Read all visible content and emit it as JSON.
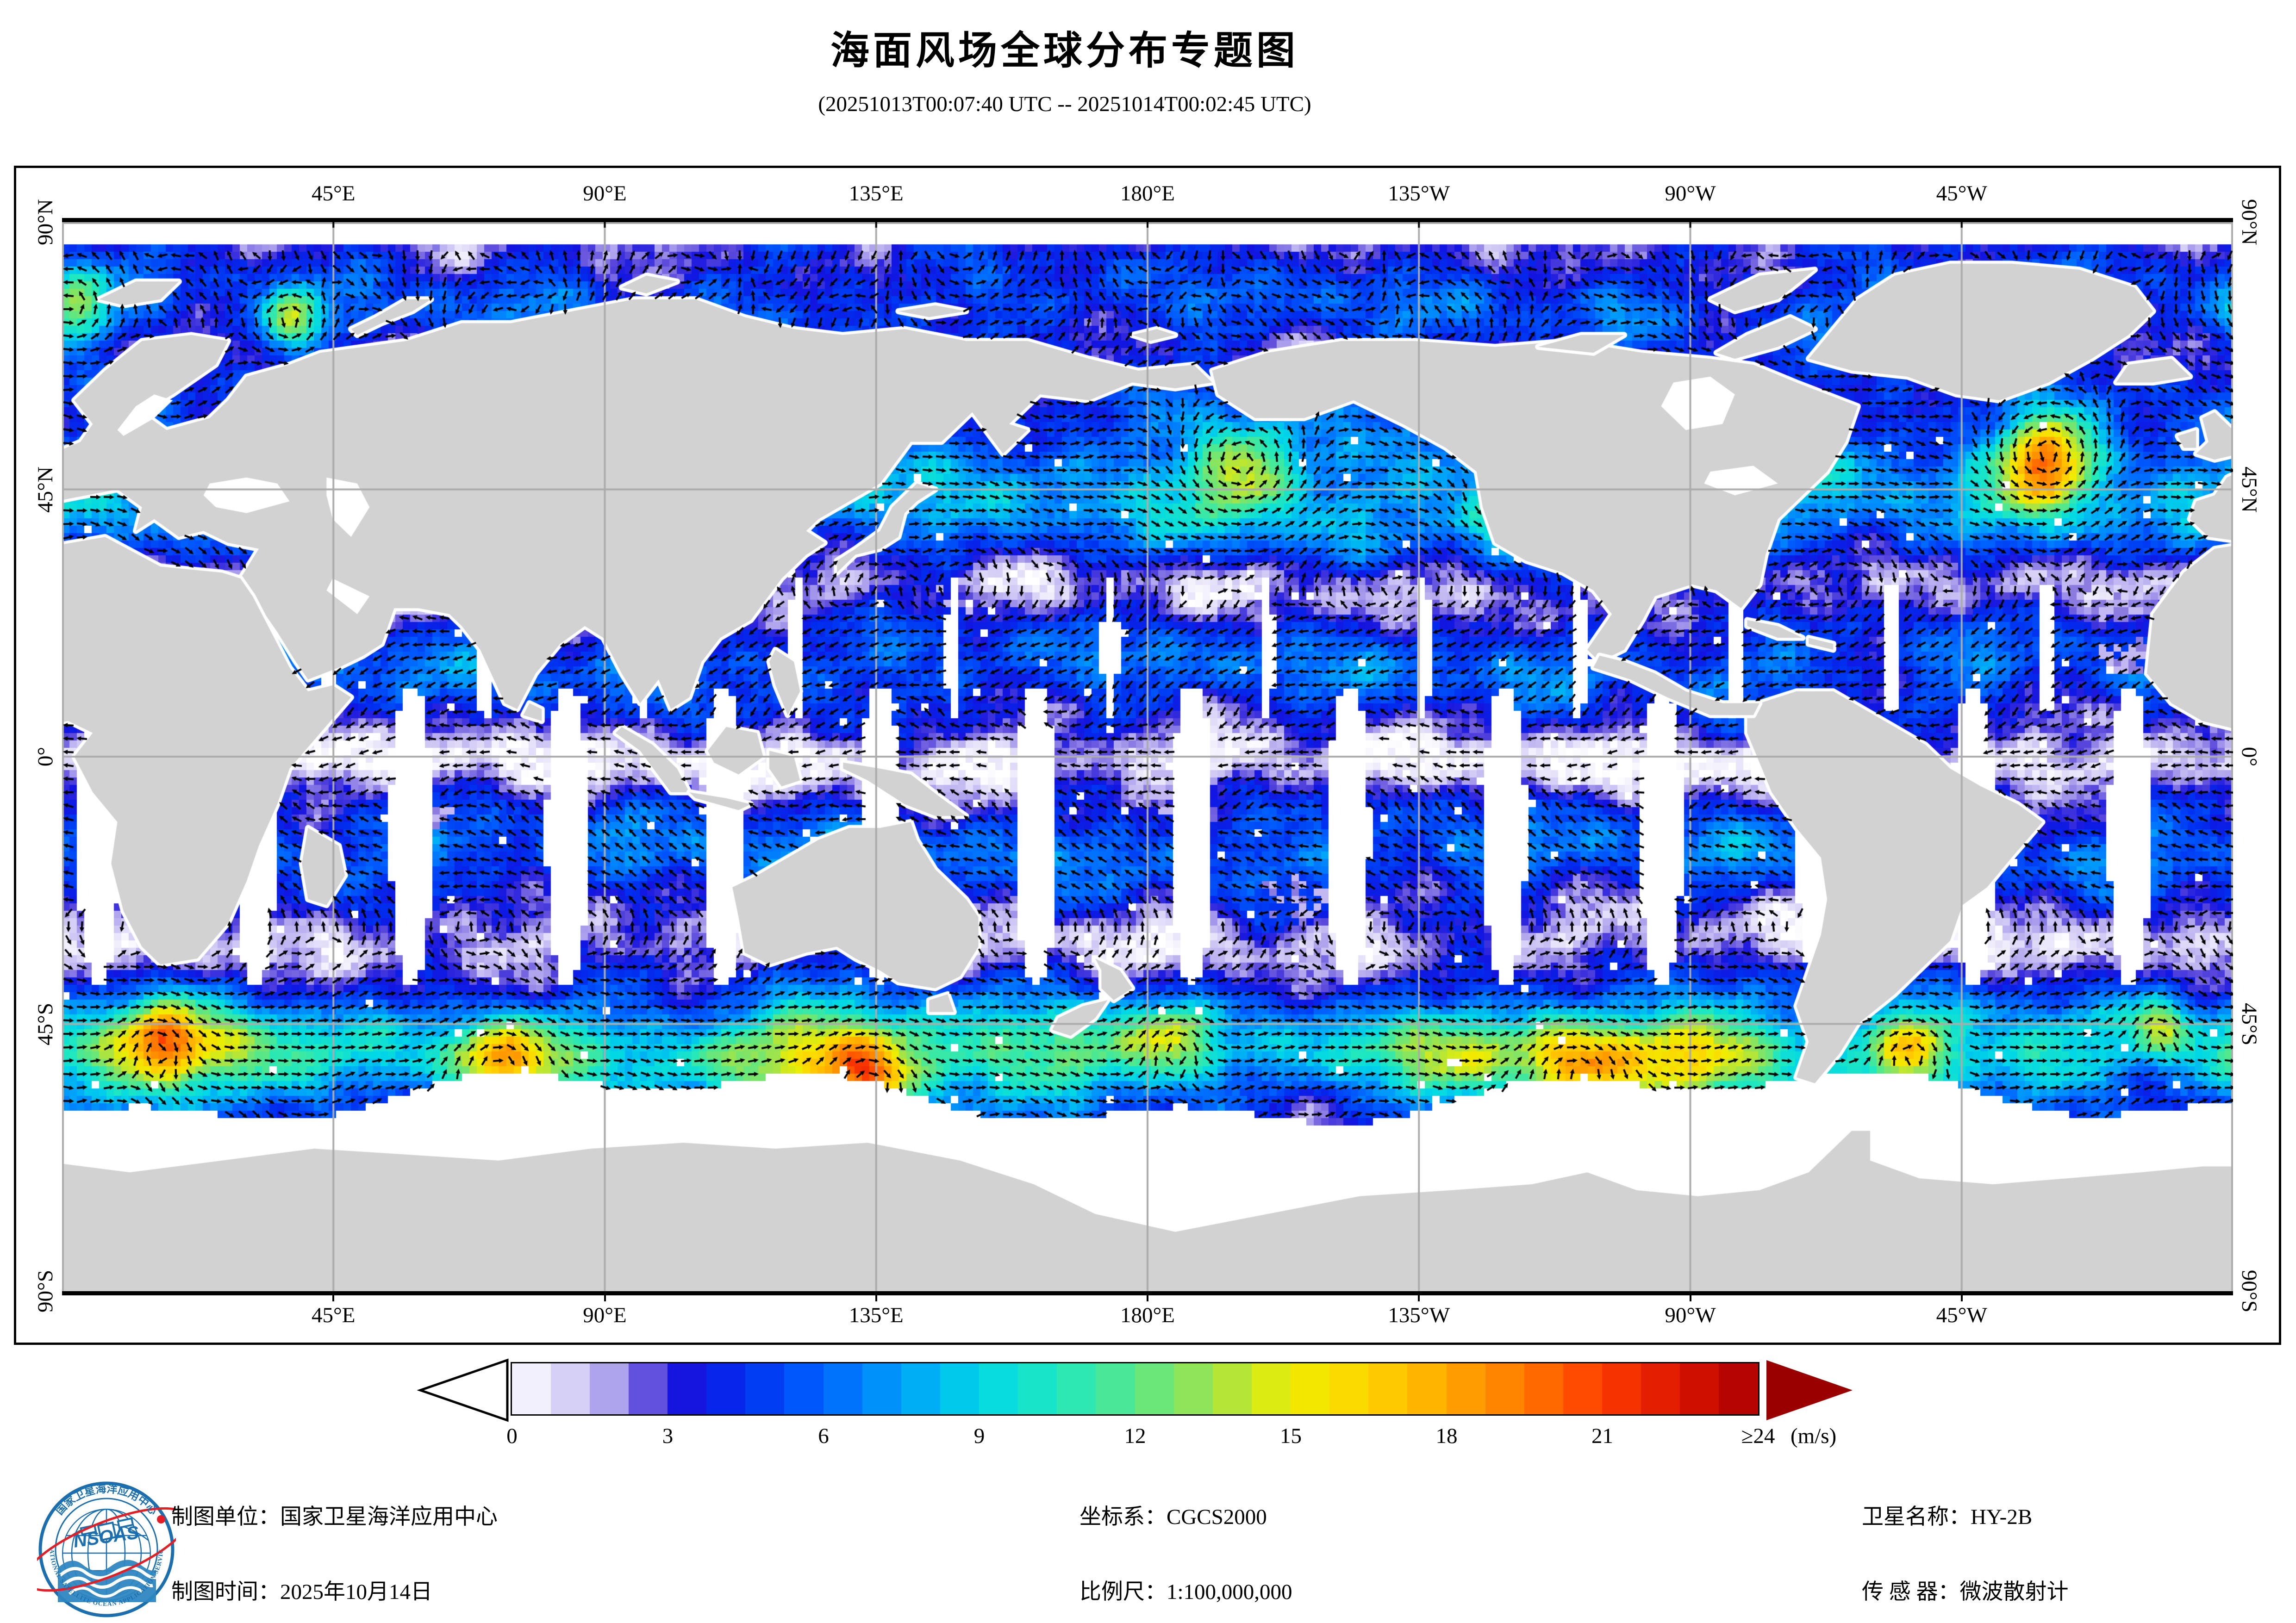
{
  "title": "海面风场全球分布专题图",
  "subtitle": "(20251013T00:07:40 UTC -- 20251014T00:02:45 UTC)",
  "map": {
    "top_axis_labels": [
      "45°E",
      "90°E",
      "135°E",
      "180°E",
      "135°W",
      "90°W",
      "45°W"
    ],
    "bottom_axis_labels": [
      "45°E",
      "90°E",
      "135°E",
      "180°E",
      "135°W",
      "90°W",
      "45°W"
    ],
    "left_axis_labels": [
      "90°N",
      "45°N",
      "0°",
      "45°S",
      "90°S"
    ],
    "right_axis_labels": [
      "90°N",
      "45°N",
      "0°",
      "45°S",
      "90°S"
    ],
    "colors": {
      "ocean": "#ffffff",
      "land": "#d2d2d2",
      "grid": "#ababab",
      "frame": "#000000",
      "arrow": "#000000",
      "rain_speckle_light": "#c3b8f2",
      "rain_speckle_dark": "#8d7ce0"
    }
  },
  "colorbar": {
    "tick_labels": [
      "0",
      "3",
      "6",
      "9",
      "12",
      "15",
      "18",
      "21",
      "≥24"
    ],
    "unit_label": "(m/s)",
    "min": 0,
    "max": 24,
    "steps": 32,
    "right_arrow_color": "#9b0000",
    "stops": [
      [
        0,
        "#ffffff"
      ],
      [
        1,
        "#ded8f8"
      ],
      [
        2,
        "#a89cec"
      ],
      [
        2.7,
        "#5a48dc"
      ],
      [
        3.4,
        "#1414e0"
      ],
      [
        4.5,
        "#0030f0"
      ],
      [
        6,
        "#0064ff"
      ],
      [
        7.5,
        "#00a0fa"
      ],
      [
        9,
        "#00d8e8"
      ],
      [
        10.5,
        "#20e8c0"
      ],
      [
        12,
        "#58e888"
      ],
      [
        13.5,
        "#a2e44a"
      ],
      [
        15,
        "#f0ee00"
      ],
      [
        16.5,
        "#ffd400"
      ],
      [
        18,
        "#ffaa00"
      ],
      [
        19.5,
        "#ff7800"
      ],
      [
        21,
        "#ff3c00"
      ],
      [
        22.5,
        "#dc1400"
      ],
      [
        24,
        "#aa0000"
      ],
      [
        26,
        "#8e0000"
      ]
    ]
  },
  "footer": {
    "col1": [
      "制图单位：国家卫星海洋应用中心",
      "制图时间：2025年10月14日"
    ],
    "col2": [
      "坐标系：CGCS2000",
      "比例尺：1:100,000,000"
    ],
    "col3": [
      "卫星名称：HY-2B",
      "传 感 器：微波散射计"
    ]
  },
  "logo": {
    "zh": "国家卫星海洋应用中心",
    "en": "NATIONAL SATELLITE OCEAN APPLICATION SERVICE",
    "abbr": "NSOAS",
    "blue": "#1b6fae",
    "red": "#e31e25"
  }
}
